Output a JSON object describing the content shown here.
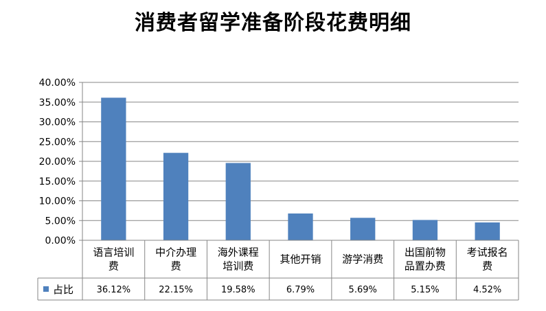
{
  "chart_data": {
    "type": "bar",
    "title": "消费者留学准备阶段花费明细",
    "categories": [
      [
        "语言培训",
        "费"
      ],
      [
        "中介办理",
        "费"
      ],
      [
        "海外课程",
        "培训费"
      ],
      [
        "其他开销"
      ],
      [
        "游学消费"
      ],
      [
        "出国前物",
        "品置办费"
      ],
      [
        "考试报名",
        "费"
      ]
    ],
    "series": [
      {
        "name": "占比",
        "values": [
          36.12,
          22.15,
          19.58,
          6.79,
          5.69,
          5.15,
          4.52
        ],
        "labels": [
          "36.12%",
          "22.15%",
          "19.58%",
          "6.79%",
          "5.69%",
          "5.15%",
          "4.52%"
        ]
      }
    ],
    "ylim": [
      0,
      40
    ],
    "yticks": [
      "0.00%",
      "5.00%",
      "10.00%",
      "15.00%",
      "20.00%",
      "25.00%",
      "30.00%",
      "35.00%",
      "40.00%"
    ],
    "grid": true,
    "legend": "table-row-left",
    "bar_color": "#4f81bd",
    "axis_color": "#868686",
    "grid_color": "#868686"
  }
}
